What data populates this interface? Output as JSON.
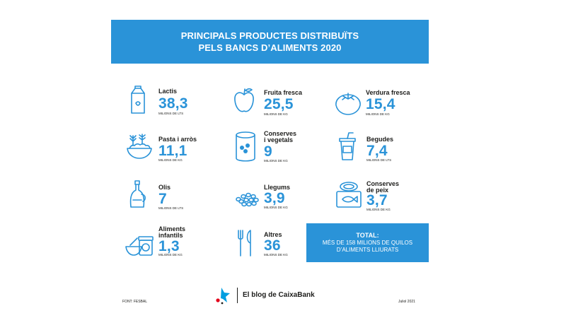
{
  "header": {
    "line1": "PRINCIPALS PRODUCTES DISTRIBUÏTS",
    "line2": "PELS BANCS D’ALIMENTS 2020"
  },
  "items": [
    {
      "label": "Lactis",
      "value": "38,3",
      "unit": "MILIONS DE LTS",
      "icon": "milk-carton-icon"
    },
    {
      "label": "Fruita fresca",
      "value": "25,5",
      "unit": "MILIONS DE KG",
      "icon": "apple-icon"
    },
    {
      "label": "Verdura fresca",
      "value": "15,4",
      "unit": "MILIONS DE KG",
      "icon": "tomato-icon"
    },
    {
      "label": "Pasta i arròs",
      "value": "11,1",
      "unit": "MILIONS DE KG",
      "icon": "rice-bowl-icon"
    },
    {
      "label": "Conserves",
      "label2": "i vegetals",
      "value": "9",
      "unit": "MILIONS DE KG",
      "icon": "tin-can-icon"
    },
    {
      "label": "Begudes",
      "value": "7,4",
      "unit": "MILIONS DE LTS",
      "icon": "drink-cup-icon"
    },
    {
      "label": "Olis",
      "value": "7",
      "unit": "MILIONS DE LTS",
      "icon": "oil-bottle-icon"
    },
    {
      "label": "Llegums",
      "value": "3,9",
      "unit": "MILIONS DE KG",
      "icon": "legumes-icon"
    },
    {
      "label": "Conserves",
      "label2": "de peix",
      "value": "3,7",
      "unit": "MILIONS DE KG",
      "icon": "fish-tin-icon"
    },
    {
      "label": "Aliments",
      "label2": "infantils",
      "value": "1,3",
      "unit": "MILIONS DE KG",
      "icon": "baby-food-icon"
    },
    {
      "label": "Altres",
      "value": "36",
      "unit": "MILIONS DE KG",
      "icon": "cutlery-icon"
    }
  ],
  "total": {
    "title": "TOTAL:",
    "line1": "MÉS DE 158 MILIONS DE QUILOS",
    "line2": "D’ALIMENTS LLIURATS"
  },
  "footer": {
    "source": "FONT: FESBAL",
    "brand": "El blog de CaixaBank",
    "date": "Juliol 2021",
    "logo_icon": "caixabank-star-icon"
  },
  "colors": {
    "accent": "#2a93d8",
    "text": "#1d1d1b"
  }
}
